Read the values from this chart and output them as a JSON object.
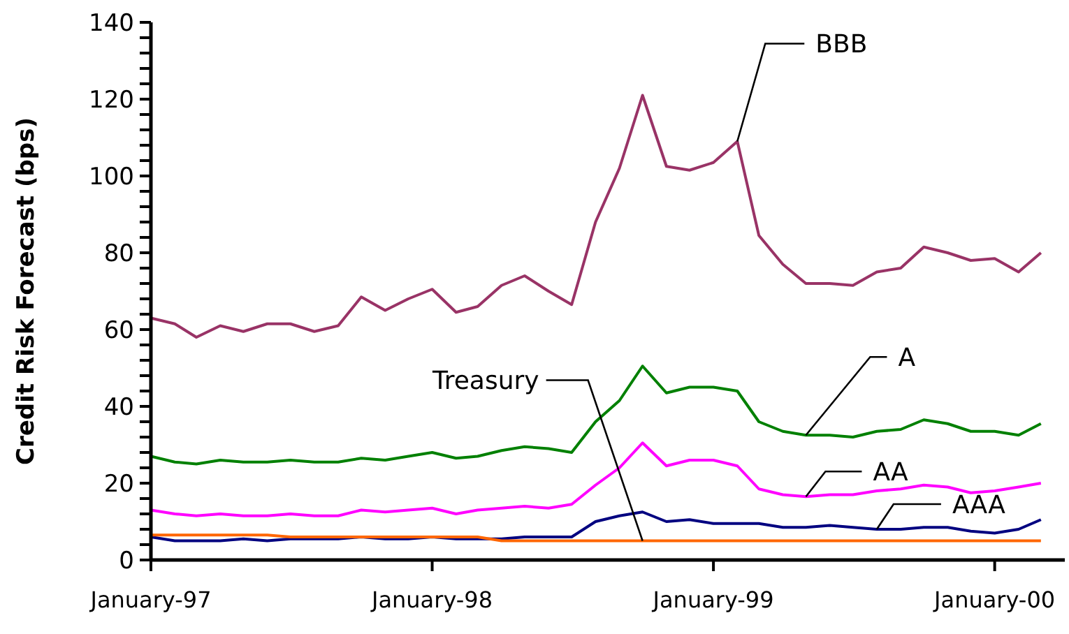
{
  "chart_data": {
    "type": "line",
    "ylabel": "Credit Risk Forecast (bps)",
    "x": [
      "1997-01",
      "1997-02",
      "1997-03",
      "1997-04",
      "1997-05",
      "1997-06",
      "1997-07",
      "1997-08",
      "1997-09",
      "1997-10",
      "1997-11",
      "1997-12",
      "1998-01",
      "1998-02",
      "1998-03",
      "1998-04",
      "1998-05",
      "1998-06",
      "1998-07",
      "1998-08",
      "1998-09",
      "1998-10",
      "1998-11",
      "1998-12",
      "1999-01",
      "1999-02",
      "1999-03",
      "1999-04",
      "1999-05",
      "1999-06",
      "1999-07",
      "1999-08",
      "1999-09",
      "1999-10",
      "1999-11",
      "1999-12",
      "2000-01",
      "2000-02",
      "2000-03"
    ],
    "series": [
      {
        "name": "BBB",
        "color": "#993366",
        "values": [
          63,
          61.5,
          58,
          61,
          59.5,
          61.5,
          61.5,
          59.5,
          61,
          68.5,
          65,
          68,
          70.5,
          64.5,
          66,
          71.5,
          74,
          70,
          66.5,
          88,
          102,
          121,
          102.5,
          101.5,
          103.5,
          109,
          84.5,
          77,
          72,
          72,
          71.5,
          75,
          76,
          81.5,
          80,
          78,
          78.5,
          75,
          80
        ]
      },
      {
        "name": "A",
        "color": "#008000",
        "values": [
          27,
          25.5,
          25,
          26,
          25.5,
          25.5,
          26,
          25.5,
          25.5,
          26.5,
          26,
          27,
          28,
          26.5,
          27,
          28.5,
          29.5,
          29,
          28,
          36,
          41.5,
          50.5,
          43.5,
          45,
          45,
          44,
          36,
          33.5,
          32.5,
          32.5,
          32,
          33.5,
          34,
          36.5,
          35.5,
          33.5,
          33.5,
          32.5,
          35.5
        ]
      },
      {
        "name": "AA",
        "color": "#ff00ff",
        "values": [
          13,
          12,
          11.5,
          12,
          11.5,
          11.5,
          12,
          11.5,
          11.5,
          13,
          12.5,
          13,
          13.5,
          12,
          13,
          13.5,
          14,
          13.5,
          14.5,
          19.5,
          24,
          30.5,
          24.5,
          26,
          26,
          24.5,
          18.5,
          17,
          16.5,
          17,
          17,
          18,
          18.5,
          19.5,
          19,
          17.5,
          18,
          19,
          20
        ]
      },
      {
        "name": "AAA",
        "color": "#000080",
        "values": [
          6,
          5,
          5,
          5,
          5.5,
          5,
          5.5,
          5.5,
          5.5,
          6,
          5.5,
          5.5,
          6,
          5.5,
          5.5,
          5.5,
          6,
          6,
          6,
          10,
          11.5,
          12.5,
          10,
          10.5,
          9.5,
          9.5,
          9.5,
          8.5,
          8.5,
          9,
          8.5,
          8,
          8,
          8.5,
          8.5,
          7.5,
          7,
          8,
          10.5
        ]
      },
      {
        "name": "Treasury",
        "color": "#ff6600",
        "values": [
          6.5,
          6.5,
          6.5,
          6.5,
          6.5,
          6.5,
          6,
          6,
          6,
          6,
          6,
          6,
          6,
          6,
          6,
          5,
          5,
          5,
          5,
          5,
          5,
          5,
          5,
          5,
          5,
          5,
          5,
          5,
          5,
          5,
          5,
          5,
          5,
          5,
          5,
          5,
          5,
          5,
          5
        ]
      }
    ],
    "xlim": [
      "1997-01",
      "2000-04"
    ],
    "xticks": [
      {
        "value": "1997-01",
        "label": "January-97"
      },
      {
        "value": "1998-01",
        "label": "January-98"
      },
      {
        "value": "1999-01",
        "label": "January-99"
      },
      {
        "value": "2000-01",
        "label": "January-00"
      }
    ],
    "ylim": [
      0,
      140
    ],
    "yticks": [
      0,
      {
        "value": 4,
        "label": null
      },
      {
        "value": 8,
        "label": null
      },
      {
        "value": 12,
        "label": null
      },
      {
        "value": 16,
        "label": null
      },
      20,
      {
        "value": 24,
        "label": null
      },
      {
        "value": 28,
        "label": null
      },
      {
        "value": 32,
        "label": null
      },
      {
        "value": 36,
        "label": null
      },
      40,
      {
        "value": 44,
        "label": null
      },
      {
        "value": 48,
        "label": null
      },
      {
        "value": 52,
        "label": null
      },
      {
        "value": 56,
        "label": null
      },
      60,
      {
        "value": 64,
        "label": null
      },
      {
        "value": 68,
        "label": null
      },
      {
        "value": 72,
        "label": null
      },
      {
        "value": 76,
        "label": null
      },
      80,
      {
        "value": 84,
        "label": null
      },
      {
        "value": 88,
        "label": null
      },
      {
        "value": 92,
        "label": null
      },
      {
        "value": 96,
        "label": null
      },
      100,
      {
        "value": 104,
        "label": null
      },
      {
        "value": 108,
        "label": null
      },
      {
        "value": 112,
        "label": null
      },
      {
        "value": 116,
        "label": null
      },
      120,
      {
        "value": 124,
        "label": null
      },
      {
        "value": 128,
        "label": null
      },
      {
        "value": 132,
        "label": null
      },
      {
        "value": 136,
        "label": null
      },
      140
    ],
    "grid": false,
    "marker": "none",
    "line_style": "solid"
  }
}
